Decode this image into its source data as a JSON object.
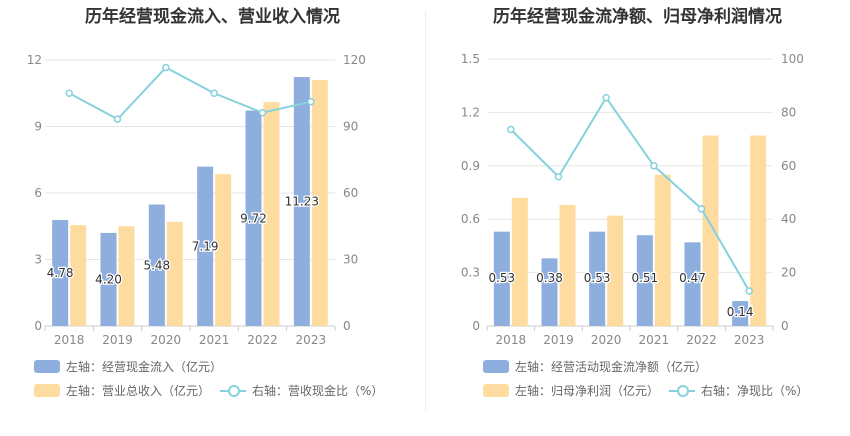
{
  "colors": {
    "bar_primary": "#8eaedd",
    "bar_secondary": "#fedca0",
    "line": "#86d2dc"
  },
  "chart_data": [
    {
      "type": "bar",
      "title": "历年经营现金流入、营业收入情况",
      "categories": [
        "2018",
        "2019",
        "2020",
        "2021",
        "2022",
        "2023"
      ],
      "y_left": {
        "ticks": [
          "0",
          "3",
          "6",
          "9",
          "12"
        ],
        "range": [
          0,
          12
        ]
      },
      "y_right": {
        "ticks": [
          "0",
          "30",
          "60",
          "90",
          "120"
        ],
        "range": [
          0,
          120
        ]
      },
      "series": [
        {
          "name": "左轴：经营现金流入（亿元）",
          "type": "bar",
          "axis": "left",
          "values": [
            4.78,
            4.2,
            5.48,
            7.19,
            9.72,
            11.23
          ],
          "labels": [
            "4.78",
            "4.20",
            "5.48",
            "7.19",
            "9.72",
            "11.23"
          ]
        },
        {
          "name": "左轴：营业总收入（亿元）",
          "type": "bar",
          "axis": "left",
          "values": [
            4.55,
            4.5,
            4.7,
            6.85,
            10.1,
            11.1
          ]
        },
        {
          "name": "右轴：营收现金比（%）",
          "type": "line",
          "axis": "right",
          "values": [
            105,
            93.3,
            116.6,
            105,
            96.2,
            101.2
          ]
        }
      ],
      "grid": true,
      "legend": "bottom"
    },
    {
      "type": "bar",
      "title": "历年经营现金流净额、归母净利润情况",
      "categories": [
        "2018",
        "2019",
        "2020",
        "2021",
        "2022",
        "2023"
      ],
      "y_left": {
        "ticks": [
          "0",
          "0.3",
          "0.6",
          "0.9",
          "1.2",
          "1.5"
        ],
        "range": [
          0,
          1.5
        ]
      },
      "y_right": {
        "ticks": [
          "0",
          "20",
          "40",
          "60",
          "80",
          "100"
        ],
        "range": [
          0,
          100
        ]
      },
      "series": [
        {
          "name": "左轴：经营活动现金流净额（亿元）",
          "type": "bar",
          "axis": "left",
          "values": [
            0.53,
            0.38,
            0.53,
            0.51,
            0.47,
            0.14
          ],
          "labels": [
            "0.53",
            "0.38",
            "0.53",
            "0.51",
            "0.47",
            "0.14"
          ]
        },
        {
          "name": "左轴：归母净利润（亿元）",
          "type": "bar",
          "axis": "left",
          "values": [
            0.72,
            0.68,
            0.62,
            0.85,
            1.07,
            1.07
          ]
        },
        {
          "name": "右轴：净现比（%）",
          "type": "line",
          "axis": "right",
          "values": [
            73.6,
            55.9,
            85.5,
            60.0,
            43.9,
            13.1
          ]
        }
      ],
      "grid": true,
      "legend": "bottom"
    }
  ]
}
